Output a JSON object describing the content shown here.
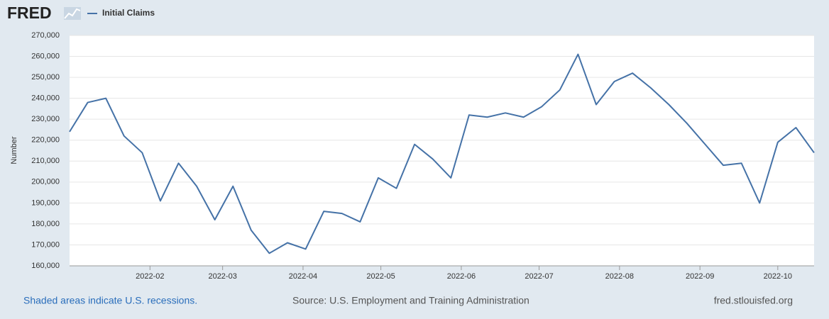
{
  "logo": "FRED",
  "footer": {
    "recessions": "Shaded areas indicate U.S. recessions.",
    "source": "Source: U.S. Employment and Training Administration",
    "site": "fred.stlouisfed.org"
  },
  "chart_data": {
    "type": "line",
    "y_label": "Number",
    "x": [
      "2022-01-01",
      "2022-01-08",
      "2022-01-15",
      "2022-01-22",
      "2022-01-29",
      "2022-02-05",
      "2022-02-12",
      "2022-02-19",
      "2022-02-26",
      "2022-03-05",
      "2022-03-12",
      "2022-03-19",
      "2022-03-26",
      "2022-04-02",
      "2022-04-09",
      "2022-04-16",
      "2022-04-23",
      "2022-04-30",
      "2022-05-07",
      "2022-05-14",
      "2022-05-21",
      "2022-05-28",
      "2022-06-04",
      "2022-06-11",
      "2022-06-18",
      "2022-06-25",
      "2022-07-02",
      "2022-07-09",
      "2022-07-16",
      "2022-07-23",
      "2022-07-30",
      "2022-08-06",
      "2022-08-13",
      "2022-08-20",
      "2022-08-27",
      "2022-09-03",
      "2022-09-10",
      "2022-09-17",
      "2022-09-24",
      "2022-10-01",
      "2022-10-08",
      "2022-10-15"
    ],
    "series": [
      {
        "name": "Initial Claims",
        "color": "#4572a7",
        "values": [
          224000,
          238000,
          240000,
          222000,
          214000,
          191000,
          209000,
          198000,
          182000,
          198000,
          177000,
          166000,
          171000,
          168000,
          186000,
          185000,
          181000,
          202000,
          197000,
          218000,
          211000,
          202000,
          232000,
          231000,
          233000,
          231000,
          236000,
          244000,
          261000,
          237000,
          248000,
          252000,
          245000,
          237000,
          228000,
          218000,
          208000,
          209000,
          190000,
          219000,
          226000,
          214000
        ]
      }
    ],
    "xlim": [
      "2022-01-01",
      "2022-10-15"
    ],
    "xticks": [
      "2022-02",
      "2022-03",
      "2022-04",
      "2022-05",
      "2022-06",
      "2022-07",
      "2022-08",
      "2022-09",
      "2022-10"
    ],
    "ylim": [
      160000,
      270000
    ],
    "yticks": [
      {
        "value": 160000,
        "label": "160,000"
      },
      {
        "value": 170000,
        "label": "170,000"
      },
      {
        "value": 180000,
        "label": "180,000"
      },
      {
        "value": 190000,
        "label": "190,000"
      },
      {
        "value": 200000,
        "label": "200,000"
      },
      {
        "value": 210000,
        "label": "210,000"
      },
      {
        "value": 220000,
        "label": "220,000"
      },
      {
        "value": 230000,
        "label": "230,000"
      },
      {
        "value": 240000,
        "label": "240,000"
      },
      {
        "value": 250000,
        "label": "250,000"
      },
      {
        "value": 260000,
        "label": "260,000"
      },
      {
        "value": 270000,
        "label": "270,000"
      }
    ],
    "grid": true
  }
}
